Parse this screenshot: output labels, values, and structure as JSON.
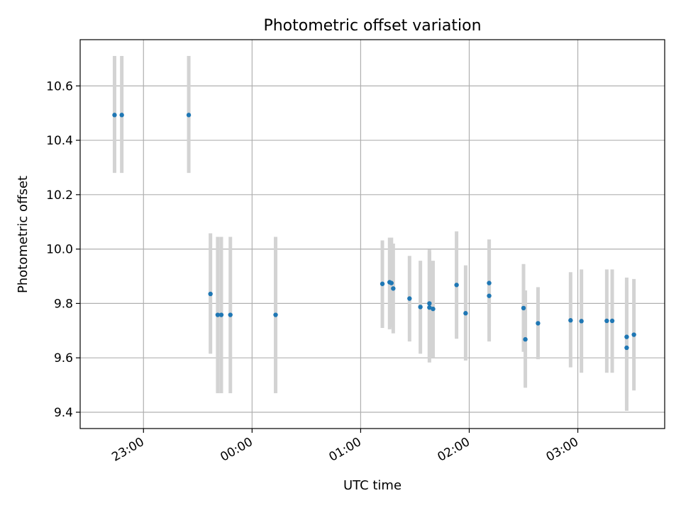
{
  "chart_data": {
    "type": "scatter",
    "title": "Photometric offset variation",
    "xlabel": "UTC time",
    "ylabel": "Photometric offset",
    "xlim": [
      "22:25",
      "03:48"
    ],
    "ylim": [
      9.34,
      10.77
    ],
    "x_ticks": [
      "23:00",
      "00:00",
      "01:00",
      "02:00",
      "03:00"
    ],
    "y_ticks": [
      9.4,
      9.6,
      9.8,
      10.0,
      10.2,
      10.4,
      10.6
    ],
    "grid": true,
    "marker_color": "#1f77b4",
    "errorbar_color": "#d3d3d3",
    "points": [
      {
        "x": "22:44",
        "y": 10.493,
        "ylo": 10.28,
        "yhi": 10.71
      },
      {
        "x": "22:48",
        "y": 10.493,
        "ylo": 10.28,
        "yhi": 10.71
      },
      {
        "x": "23:25",
        "y": 10.493,
        "ylo": 10.28,
        "yhi": 10.71
      },
      {
        "x": "23:37",
        "y": 9.835,
        "ylo": 9.615,
        "yhi": 10.058
      },
      {
        "x": "23:41",
        "y": 9.758,
        "ylo": 9.47,
        "yhi": 10.045
      },
      {
        "x": "23:43",
        "y": 9.758,
        "ylo": 9.47,
        "yhi": 10.045
      },
      {
        "x": "23:48",
        "y": 9.758,
        "ylo": 9.47,
        "yhi": 10.045
      },
      {
        "x": "00:13",
        "y": 9.758,
        "ylo": 9.47,
        "yhi": 10.045
      },
      {
        "x": "01:12",
        "y": 9.872,
        "ylo": 9.71,
        "yhi": 10.032
      },
      {
        "x": "01:16",
        "y": 9.878,
        "ylo": 9.705,
        "yhi": 10.042
      },
      {
        "x": "01:17",
        "y": 9.875,
        "ylo": 9.712,
        "yhi": 10.042
      },
      {
        "x": "01:18",
        "y": 9.855,
        "ylo": 9.69,
        "yhi": 10.02
      },
      {
        "x": "01:27",
        "y": 9.818,
        "ylo": 9.66,
        "yhi": 9.975
      },
      {
        "x": "01:33",
        "y": 9.787,
        "ylo": 9.615,
        "yhi": 9.957
      },
      {
        "x": "01:38",
        "y": 9.8,
        "ylo": 9.6,
        "yhi": 9.998
      },
      {
        "x": "01:38",
        "y": 9.785,
        "ylo": 9.583,
        "yhi": 9.99
      },
      {
        "x": "01:40",
        "y": 9.78,
        "ylo": 9.6,
        "yhi": 9.957
      },
      {
        "x": "01:53",
        "y": 9.868,
        "ylo": 9.67,
        "yhi": 10.065
      },
      {
        "x": "01:58",
        "y": 9.764,
        "ylo": 9.59,
        "yhi": 9.94
      },
      {
        "x": "02:11",
        "y": 9.828,
        "ylo": 9.66,
        "yhi": 10.035
      },
      {
        "x": "02:11",
        "y": 9.875,
        "ylo": 9.715,
        "yhi": 10.035
      },
      {
        "x": "02:30",
        "y": 9.783,
        "ylo": 9.622,
        "yhi": 9.945
      },
      {
        "x": "02:31",
        "y": 9.668,
        "ylo": 9.49,
        "yhi": 9.848
      },
      {
        "x": "02:38",
        "y": 9.727,
        "ylo": 9.595,
        "yhi": 9.86
      },
      {
        "x": "02:56",
        "y": 9.738,
        "ylo": 9.565,
        "yhi": 9.915
      },
      {
        "x": "03:02",
        "y": 9.735,
        "ylo": 9.545,
        "yhi": 9.925
      },
      {
        "x": "03:16",
        "y": 9.736,
        "ylo": 9.545,
        "yhi": 9.925
      },
      {
        "x": "03:19",
        "y": 9.736,
        "ylo": 9.545,
        "yhi": 9.925
      },
      {
        "x": "03:27",
        "y": 9.677,
        "ylo": 9.455,
        "yhi": 9.895
      },
      {
        "x": "03:27",
        "y": 9.637,
        "ylo": 9.405,
        "yhi": 9.87
      },
      {
        "x": "03:31",
        "y": 9.685,
        "ylo": 9.48,
        "yhi": 9.89
      }
    ]
  }
}
